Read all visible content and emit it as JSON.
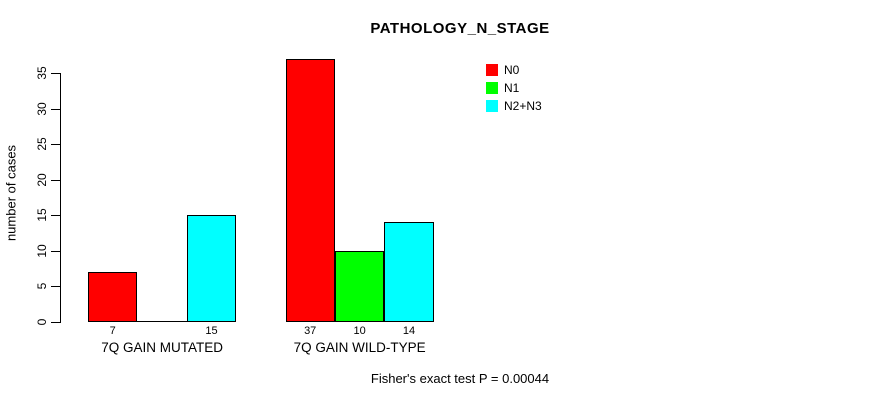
{
  "chart_data": {
    "type": "bar",
    "title": "PATHOLOGY_N_STAGE",
    "xlabel": "",
    "ylabel": "number of cases",
    "ylim": [
      0,
      35
    ],
    "yticks": [
      0,
      5,
      10,
      15,
      20,
      25,
      30,
      35
    ],
    "grid": false,
    "legend_position": "top-right",
    "categories": [
      "7Q GAIN MUTATED",
      "7Q GAIN WILD-TYPE"
    ],
    "series": [
      {
        "name": "N0",
        "color": "#ff0000",
        "values": [
          7,
          37
        ]
      },
      {
        "name": "N1",
        "color": "#00ff00",
        "values": [
          0,
          10
        ]
      },
      {
        "name": "N2+N3",
        "color": "#00ffff",
        "values": [
          15,
          14
        ]
      }
    ],
    "bar_value_labels": [
      [
        "7",
        "",
        "15"
      ],
      [
        "37",
        "10",
        "14"
      ]
    ],
    "annotation": "Fisher's exact test P = 0.00044",
    "axis_color": "#000000",
    "text_color": "#000000",
    "background_color": "#ffffff"
  }
}
